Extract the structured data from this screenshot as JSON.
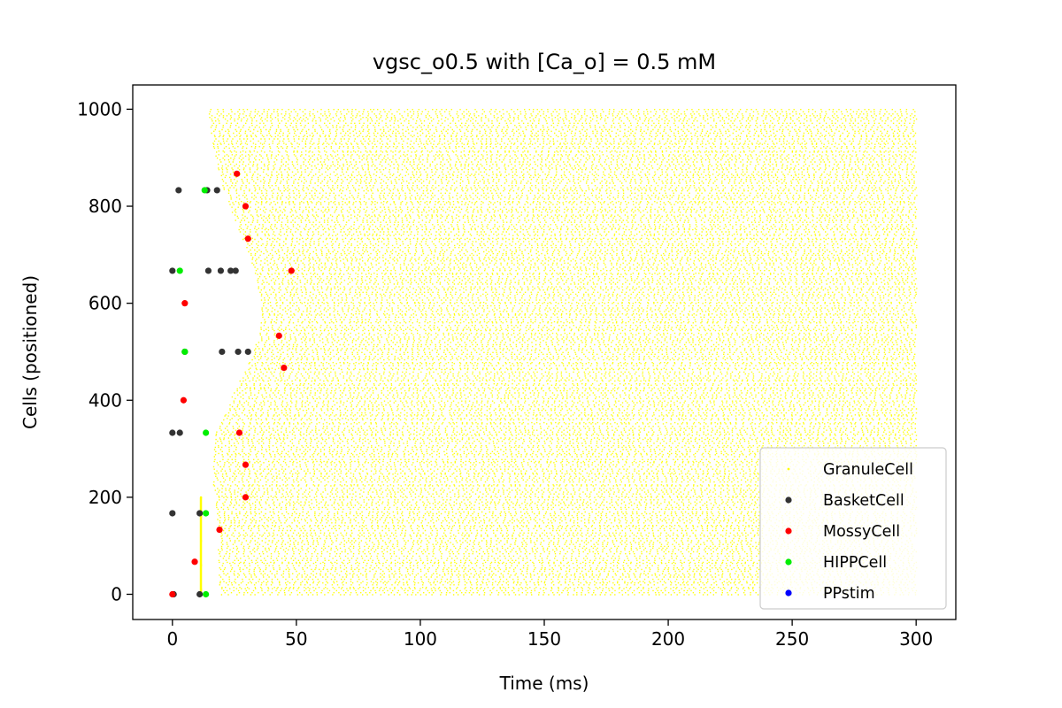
{
  "chart_data": {
    "type": "scatter",
    "title": "vgsc_o0.5 with [Ca_o] = 0.5 mM",
    "xlabel": "Time (ms)",
    "ylabel": "Cells (positioned)",
    "xlim": [
      -16,
      316
    ],
    "ylim": [
      -52,
      1050
    ],
    "xticks": [
      0,
      50,
      100,
      150,
      200,
      250,
      300
    ],
    "yticks": [
      0,
      200,
      400,
      600,
      800,
      1000
    ],
    "legend_position": "lower-right",
    "granule_region": {
      "time_end": 300,
      "cell_min": 0,
      "cell_max": 1000,
      "onset_front": [
        {
          "cell": 0,
          "time": 19
        },
        {
          "cell": 120,
          "time": 18
        },
        {
          "cell": 250,
          "time": 16
        },
        {
          "cell": 330,
          "time": 17
        },
        {
          "cell": 400,
          "time": 23
        },
        {
          "cell": 470,
          "time": 30
        },
        {
          "cell": 540,
          "time": 35
        },
        {
          "cell": 600,
          "time": 36
        },
        {
          "cell": 680,
          "time": 32
        },
        {
          "cell": 760,
          "time": 26
        },
        {
          "cell": 840,
          "time": 20
        },
        {
          "cell": 930,
          "time": 16
        },
        {
          "cell": 1000,
          "time": 14
        }
      ]
    },
    "series": [
      {
        "name": "GranuleCell",
        "color": "#ffff00",
        "points": [
          [
            11.5,
            10
          ],
          [
            11.5,
            60
          ],
          [
            11.5,
            110
          ],
          [
            11.5,
            160
          ],
          [
            11.5,
            200
          ]
        ]
      },
      {
        "name": "BasketCell",
        "color": "#333333",
        "points": [
          [
            2.5,
            833
          ],
          [
            14,
            833
          ],
          [
            18,
            833
          ],
          [
            0,
            667
          ],
          [
            14.5,
            667
          ],
          [
            19.5,
            667
          ],
          [
            23.5,
            667
          ],
          [
            25.5,
            667
          ],
          [
            5,
            500
          ],
          [
            20,
            500
          ],
          [
            26.5,
            500
          ],
          [
            30.5,
            500
          ],
          [
            0,
            333
          ],
          [
            3,
            333
          ],
          [
            0,
            167
          ],
          [
            11,
            167
          ],
          [
            0.5,
            0
          ],
          [
            11,
            0
          ]
        ]
      },
      {
        "name": "MossyCell",
        "color": "#ff0000",
        "points": [
          [
            26,
            867
          ],
          [
            29.5,
            800
          ],
          [
            30.5,
            733
          ],
          [
            48,
            667
          ],
          [
            5,
            600
          ],
          [
            43,
            533
          ],
          [
            45,
            467
          ],
          [
            4.5,
            400
          ],
          [
            27,
            333
          ],
          [
            29.5,
            267
          ],
          [
            29.5,
            200
          ],
          [
            19,
            133
          ],
          [
            9,
            67
          ],
          [
            0,
            0
          ]
        ]
      },
      {
        "name": "HIPPCell",
        "color": "#00ee00",
        "points": [
          [
            13,
            833
          ],
          [
            3,
            667
          ],
          [
            5,
            500
          ],
          [
            13.5,
            333
          ],
          [
            13.5,
            167
          ],
          [
            13.5,
            0
          ]
        ]
      },
      {
        "name": "PPstim",
        "color": "#0000ff",
        "points": []
      }
    ]
  }
}
